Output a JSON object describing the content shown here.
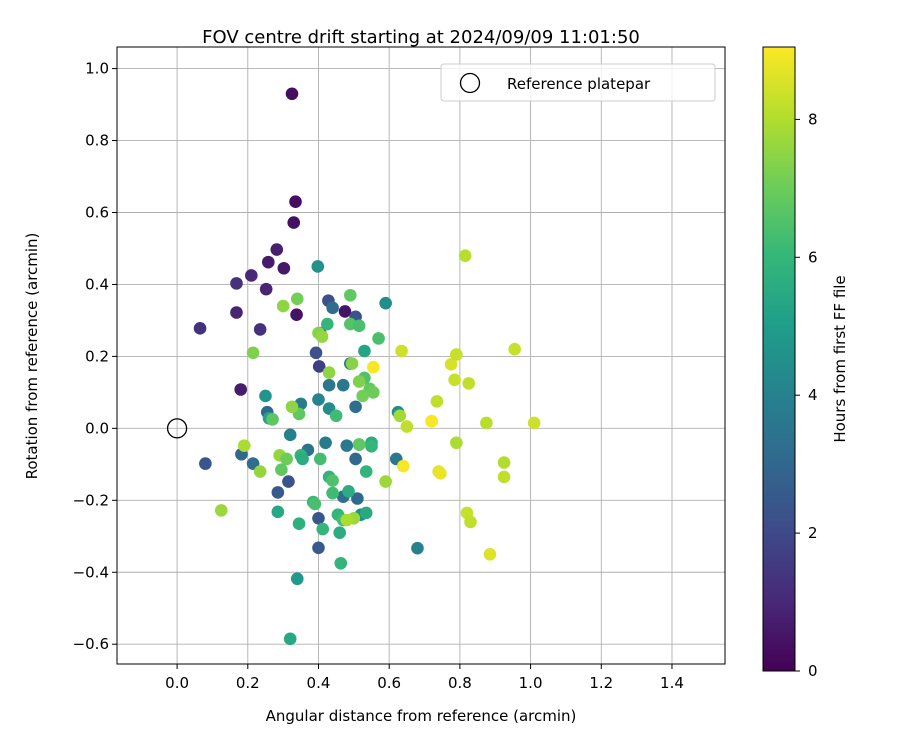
{
  "chart_data": {
    "type": "scatter",
    "title": "FOV centre drift starting at 2024/09/09 11:01:50",
    "xlabel": "Angular distance from reference (arcmin)",
    "ylabel": "Rotation from reference (arcmin)",
    "xlim": [
      -0.17,
      1.55
    ],
    "ylim": [
      -0.655,
      1.06
    ],
    "xticks": [
      "0.0",
      "0.2",
      "0.4",
      "0.6",
      "0.8",
      "1.0",
      "1.2",
      "1.4"
    ],
    "yticks": [
      "−0.6",
      "−0.4",
      "−0.2",
      "0.0",
      "0.2",
      "0.4",
      "0.6",
      "0.8",
      "1.0"
    ],
    "grid": true,
    "legend": {
      "placement": "top-right",
      "entries": [
        {
          "label": "Reference platepar",
          "marker": "open-circle"
        }
      ]
    },
    "reference_point": {
      "x": 0.0,
      "y": 0.0
    },
    "colorbar": {
      "label": "Hours from first FF file",
      "min": 0,
      "max": 9.05,
      "ticks": [
        "0",
        "2",
        "4",
        "6",
        "8"
      ],
      "colormap": "viridis"
    },
    "points": [
      {
        "x": 0.325,
        "y": 0.93,
        "c": 0.3
      },
      {
        "x": 0.335,
        "y": 0.63,
        "c": 0.3
      },
      {
        "x": 0.33,
        "y": 0.572,
        "c": 0.4
      },
      {
        "x": 0.282,
        "y": 0.497,
        "c": 0.8
      },
      {
        "x": 0.258,
        "y": 0.462,
        "c": 0.7
      },
      {
        "x": 0.302,
        "y": 0.445,
        "c": 0.6
      },
      {
        "x": 0.21,
        "y": 0.425,
        "c": 1.0
      },
      {
        "x": 0.168,
        "y": 0.403,
        "c": 1.3
      },
      {
        "x": 0.252,
        "y": 0.387,
        "c": 0.9
      },
      {
        "x": 0.168,
        "y": 0.322,
        "c": 0.9
      },
      {
        "x": 0.338,
        "y": 0.316,
        "c": 0.5
      },
      {
        "x": 0.475,
        "y": 0.325,
        "c": 0.5
      },
      {
        "x": 0.065,
        "y": 0.278,
        "c": 1.3
      },
      {
        "x": 0.235,
        "y": 0.275,
        "c": 1.3
      },
      {
        "x": 0.18,
        "y": 0.108,
        "c": 0.7
      },
      {
        "x": 0.398,
        "y": 0.45,
        "c": 4.6
      },
      {
        "x": 0.59,
        "y": 0.348,
        "c": 4.4
      },
      {
        "x": 0.428,
        "y": 0.355,
        "c": 2.2
      },
      {
        "x": 0.44,
        "y": 0.335,
        "c": 3.2
      },
      {
        "x": 0.505,
        "y": 0.31,
        "c": 2.3
      },
      {
        "x": 0.405,
        "y": 0.265,
        "c": 2.4
      },
      {
        "x": 0.393,
        "y": 0.21,
        "c": 2.2
      },
      {
        "x": 0.402,
        "y": 0.172,
        "c": 1.7
      },
      {
        "x": 0.08,
        "y": -0.098,
        "c": 2.4
      },
      {
        "x": 0.182,
        "y": -0.072,
        "c": 3.0
      },
      {
        "x": 0.215,
        "y": -0.098,
        "c": 3.2
      },
      {
        "x": 0.25,
        "y": 0.09,
        "c": 4.7
      },
      {
        "x": 0.255,
        "y": 0.045,
        "c": 3.0
      },
      {
        "x": 0.26,
        "y": 0.028,
        "c": 5.2
      },
      {
        "x": 0.285,
        "y": -0.178,
        "c": 2.5
      },
      {
        "x": 0.315,
        "y": -0.148,
        "c": 2.3
      },
      {
        "x": 0.32,
        "y": -0.018,
        "c": 4.0
      },
      {
        "x": 0.35,
        "y": 0.068,
        "c": 3.8
      },
      {
        "x": 0.37,
        "y": -0.06,
        "c": 3.5
      },
      {
        "x": 0.4,
        "y": 0.08,
        "c": 4.1
      },
      {
        "x": 0.42,
        "y": -0.04,
        "c": 3.7
      },
      {
        "x": 0.43,
        "y": 0.12,
        "c": 3.6
      },
      {
        "x": 0.43,
        "y": 0.055,
        "c": 4.4
      },
      {
        "x": 0.47,
        "y": 0.12,
        "c": 3.6
      },
      {
        "x": 0.48,
        "y": -0.048,
        "c": 3.7
      },
      {
        "x": 0.49,
        "y": 0.18,
        "c": 3.7
      },
      {
        "x": 0.505,
        "y": 0.06,
        "c": 3.3
      },
      {
        "x": 0.505,
        "y": -0.085,
        "c": 3.1
      },
      {
        "x": 0.515,
        "y": -0.045,
        "c": 3.6
      },
      {
        "x": 0.51,
        "y": -0.195,
        "c": 3.0
      },
      {
        "x": 0.47,
        "y": -0.19,
        "c": 3.3
      },
      {
        "x": 0.4,
        "y": -0.25,
        "c": 2.4
      },
      {
        "x": 0.4,
        "y": -0.332,
        "c": 2.5
      },
      {
        "x": 0.62,
        "y": -0.085,
        "c": 3.6
      },
      {
        "x": 0.68,
        "y": -0.333,
        "c": 4.0
      },
      {
        "x": 0.625,
        "y": 0.045,
        "c": 4.5
      },
      {
        "x": 0.53,
        "y": 0.215,
        "c": 5.3
      },
      {
        "x": 0.52,
        "y": -0.24,
        "c": 4.5
      },
      {
        "x": 0.535,
        "y": -0.235,
        "c": 5.5
      },
      {
        "x": 0.285,
        "y": -0.232,
        "c": 5.4
      },
      {
        "x": 0.34,
        "y": -0.418,
        "c": 4.9
      },
      {
        "x": 0.32,
        "y": -0.585,
        "c": 5.4
      },
      {
        "x": 0.46,
        "y": -0.29,
        "c": 5.6
      },
      {
        "x": 0.463,
        "y": -0.375,
        "c": 5.9
      },
      {
        "x": 0.345,
        "y": -0.265,
        "c": 5.7
      },
      {
        "x": 0.412,
        "y": -0.28,
        "c": 6.0
      },
      {
        "x": 0.455,
        "y": -0.24,
        "c": 6.0
      },
      {
        "x": 0.385,
        "y": -0.205,
        "c": 6.1
      },
      {
        "x": 0.39,
        "y": -0.21,
        "c": 6.4
      },
      {
        "x": 0.44,
        "y": -0.18,
        "c": 6.2
      },
      {
        "x": 0.485,
        "y": -0.175,
        "c": 5.6
      },
      {
        "x": 0.47,
        "y": -0.255,
        "c": 6.3
      },
      {
        "x": 0.35,
        "y": -0.075,
        "c": 5.9
      },
      {
        "x": 0.355,
        "y": -0.085,
        "c": 5.6
      },
      {
        "x": 0.405,
        "y": -0.085,
        "c": 6.3
      },
      {
        "x": 0.43,
        "y": -0.135,
        "c": 5.8
      },
      {
        "x": 0.44,
        "y": -0.145,
        "c": 6.5
      },
      {
        "x": 0.535,
        "y": -0.12,
        "c": 5.9
      },
      {
        "x": 0.55,
        "y": -0.04,
        "c": 5.6
      },
      {
        "x": 0.55,
        "y": -0.05,
        "c": 6.0
      },
      {
        "x": 0.45,
        "y": 0.035,
        "c": 6.2
      },
      {
        "x": 0.425,
        "y": 0.29,
        "c": 6.0
      },
      {
        "x": 0.49,
        "y": 0.29,
        "c": 6.6
      },
      {
        "x": 0.515,
        "y": 0.285,
        "c": 6.4
      },
      {
        "x": 0.49,
        "y": 0.37,
        "c": 6.8
      },
      {
        "x": 0.57,
        "y": 0.25,
        "c": 6.4
      },
      {
        "x": 0.53,
        "y": 0.14,
        "c": 6.5
      },
      {
        "x": 0.545,
        "y": 0.11,
        "c": 6.8
      },
      {
        "x": 0.555,
        "y": 0.1,
        "c": 7.0
      },
      {
        "x": 0.515,
        "y": 0.13,
        "c": 7.3
      },
      {
        "x": 0.525,
        "y": 0.09,
        "c": 7.1
      },
      {
        "x": 0.515,
        "y": -0.045,
        "c": 6.8
      },
      {
        "x": 0.295,
        "y": -0.115,
        "c": 6.8
      },
      {
        "x": 0.27,
        "y": 0.025,
        "c": 6.7
      },
      {
        "x": 0.345,
        "y": 0.04,
        "c": 6.8
      },
      {
        "x": 0.34,
        "y": 0.36,
        "c": 7.1
      },
      {
        "x": 0.3,
        "y": 0.34,
        "c": 7.5
      },
      {
        "x": 0.4,
        "y": 0.265,
        "c": 7.4
      },
      {
        "x": 0.41,
        "y": 0.255,
        "c": 7.6
      },
      {
        "x": 0.43,
        "y": 0.155,
        "c": 7.5
      },
      {
        "x": 0.495,
        "y": 0.18,
        "c": 7.4
      },
      {
        "x": 0.215,
        "y": 0.21,
        "c": 7.3
      },
      {
        "x": 0.325,
        "y": 0.06,
        "c": 7.5
      },
      {
        "x": 0.29,
        "y": -0.075,
        "c": 7.6
      },
      {
        "x": 0.235,
        "y": -0.12,
        "c": 7.6
      },
      {
        "x": 0.19,
        "y": -0.048,
        "c": 7.9
      },
      {
        "x": 0.125,
        "y": -0.228,
        "c": 7.7
      },
      {
        "x": 0.31,
        "y": -0.085,
        "c": 7.0
      },
      {
        "x": 0.5,
        "y": -0.25,
        "c": 7.7
      },
      {
        "x": 0.48,
        "y": -0.255,
        "c": 7.9
      },
      {
        "x": 0.59,
        "y": -0.148,
        "c": 7.7
      },
      {
        "x": 0.63,
        "y": 0.035,
        "c": 7.8
      },
      {
        "x": 0.65,
        "y": 0.005,
        "c": 8.2
      },
      {
        "x": 0.635,
        "y": 0.215,
        "c": 8.4
      },
      {
        "x": 0.735,
        "y": 0.075,
        "c": 8.2
      },
      {
        "x": 0.72,
        "y": 0.02,
        "c": 8.5
      },
      {
        "x": 0.775,
        "y": 0.178,
        "c": 8.5
      },
      {
        "x": 0.79,
        "y": 0.205,
        "c": 8.3
      },
      {
        "x": 0.785,
        "y": 0.135,
        "c": 8.3
      },
      {
        "x": 0.825,
        "y": 0.125,
        "c": 8.2
      },
      {
        "x": 0.815,
        "y": 0.48,
        "c": 8.1
      },
      {
        "x": 0.79,
        "y": -0.04,
        "c": 7.9
      },
      {
        "x": 0.875,
        "y": 0.015,
        "c": 8.1
      },
      {
        "x": 0.955,
        "y": 0.22,
        "c": 8.3
      },
      {
        "x": 1.01,
        "y": 0.015,
        "c": 8.4
      },
      {
        "x": 0.925,
        "y": -0.095,
        "c": 8.0
      },
      {
        "x": 0.925,
        "y": -0.135,
        "c": 8.2
      },
      {
        "x": 0.82,
        "y": -0.235,
        "c": 8.3
      },
      {
        "x": 0.83,
        "y": -0.26,
        "c": 8.2
      },
      {
        "x": 0.74,
        "y": -0.12,
        "c": 8.7
      },
      {
        "x": 0.745,
        "y": -0.125,
        "c": 8.8
      },
      {
        "x": 0.64,
        "y": -0.105,
        "c": 9.0
      },
      {
        "x": 0.72,
        "y": 0.02,
        "c": 9.0
      },
      {
        "x": 0.555,
        "y": 0.17,
        "c": 9.0
      },
      {
        "x": 0.885,
        "y": -0.35,
        "c": 8.6
      }
    ]
  }
}
